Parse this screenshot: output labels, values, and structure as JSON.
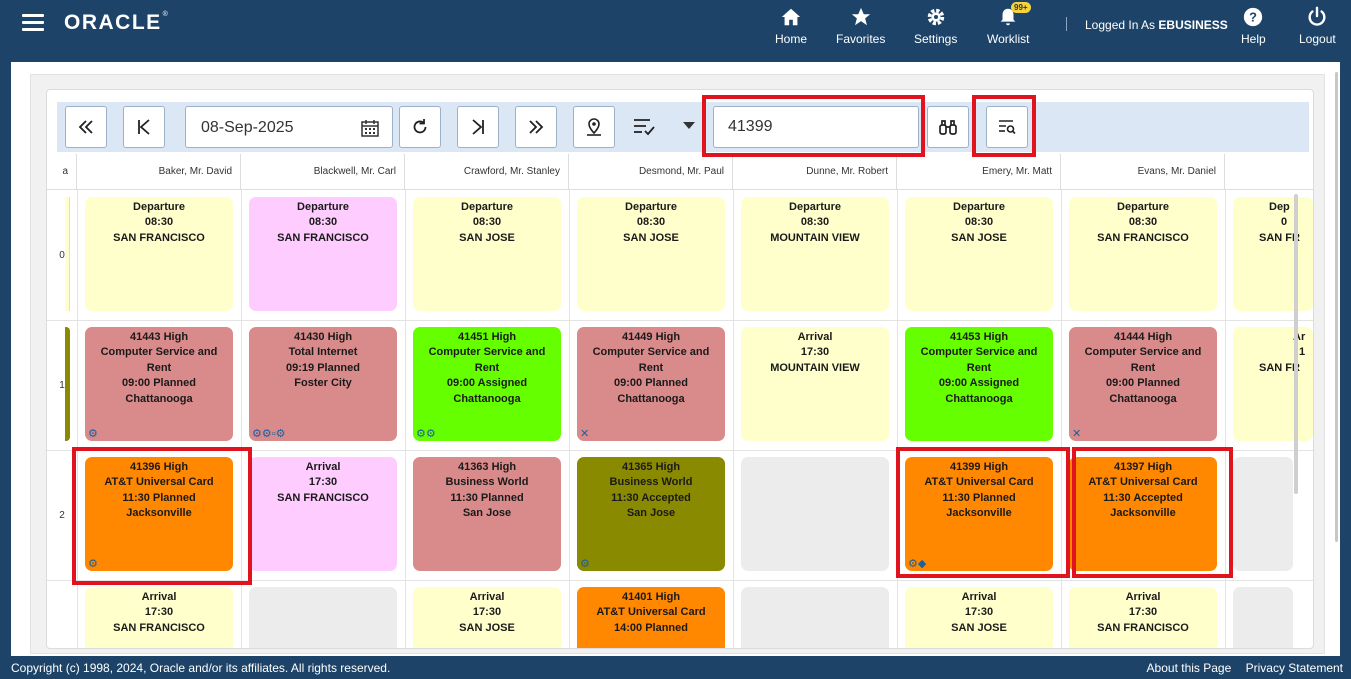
{
  "header": {
    "logo": "ORACLE",
    "nav": [
      {
        "label": "Home",
        "icon": "home-icon"
      },
      {
        "label": "Favorites",
        "icon": "star-icon"
      },
      {
        "label": "Settings",
        "icon": "gear-icon"
      },
      {
        "label": "Worklist",
        "icon": "bell-icon",
        "badge": "99+"
      },
      {
        "label": "Help",
        "icon": "help-icon"
      },
      {
        "label": "Logout",
        "icon": "power-icon"
      }
    ],
    "logged_in_prefix": "Logged In As",
    "logged_in_user": "EBUSINESS"
  },
  "toolbar": {
    "date": "08-Sep-2025",
    "search_value": "41399"
  },
  "columns": [
    "a",
    "Baker, Mr. David",
    "Blackwell, Mr. Carl",
    "Crawford, Mr. Stanley",
    "Desmond, Mr. Paul",
    "Dunne, Mr. Robert",
    "Emery, Mr. Matt",
    "Evans, Mr. Daniel"
  ],
  "rows": [
    "0",
    "1",
    "2"
  ],
  "tiles": {
    "r0": [
      {
        "l1": "Departure",
        "l2": "08:30",
        "l3": "SAN FRANCISCO",
        "color": "yellow"
      },
      {
        "l1": "Departure",
        "l2": "08:30",
        "l3": "SAN FRANCISCO",
        "color": "pink"
      },
      {
        "l1": "Departure",
        "l2": "08:30",
        "l3": "SAN JOSE",
        "color": "yellow"
      },
      {
        "l1": "Departure",
        "l2": "08:30",
        "l3": "SAN JOSE",
        "color": "yellow"
      },
      {
        "l1": "Departure",
        "l2": "08:30",
        "l3": "MOUNTAIN VIEW",
        "color": "yellow"
      },
      {
        "l1": "Departure",
        "l2": "08:30",
        "l3": "SAN JOSE",
        "color": "yellow"
      },
      {
        "l1": "Departure",
        "l2": "08:30",
        "l3": "SAN FRANCISCO",
        "color": "yellow"
      },
      {
        "l1": "Dep",
        "l2": "0",
        "l3": "SAN FR",
        "color": "yellow"
      }
    ],
    "r1": [
      {
        "l1": "41443 High",
        "l2": "Computer Service and",
        "l3": "Rent",
        "l4": "09:00 Planned",
        "l5": "Chattanooga",
        "color": "rose"
      },
      {
        "l1": "41430 High",
        "l2": "Total Internet",
        "l3": "09:19 Planned",
        "l4": "Foster City",
        "color": "rose"
      },
      {
        "l1": "41451 High",
        "l2": "Computer Service and",
        "l3": "Rent",
        "l4": "09:00 Assigned",
        "l5": "Chattanooga",
        "color": "green"
      },
      {
        "l1": "41449 High",
        "l2": "Computer Service and",
        "l3": "Rent",
        "l4": "09:00 Planned",
        "l5": "Chattanooga",
        "color": "rose"
      },
      {
        "l1": "Arrival",
        "l2": "17:30",
        "l3": "MOUNTAIN VIEW",
        "color": "yellow"
      },
      {
        "l1": "41453 High",
        "l2": "Computer Service and",
        "l3": "Rent",
        "l4": "09:00 Assigned",
        "l5": "Chattanooga",
        "color": "green"
      },
      {
        "l1": "41444 High",
        "l2": "Computer Service and",
        "l3": "Rent",
        "l4": "09:00 Planned",
        "l5": "Chattanooga",
        "color": "rose"
      },
      {
        "l1": "Ar",
        "l2": "1",
        "l3": "SAN FR",
        "color": "yellow"
      }
    ],
    "r2": [
      {
        "l1": "41396 High",
        "l2": "AT&T Universal Card",
        "l3": "11:30 Planned",
        "l4": "Jacksonville",
        "color": "orange"
      },
      {
        "l1": "Arrival",
        "l2": "17:30",
        "l3": "SAN FRANCISCO",
        "color": "pink"
      },
      {
        "l1": "41363 High",
        "l2": "Business World",
        "l3": "11:30 Planned",
        "l4": "San Jose",
        "color": "rose"
      },
      {
        "l1": "41365 High",
        "l2": "Business World",
        "l3": "11:30 Accepted",
        "l4": "San Jose",
        "color": "olive"
      },
      {
        "l1": "",
        "color": "grey"
      },
      {
        "l1": "41399 High",
        "l2": "AT&T Universal Card",
        "l3": "11:30 Planned",
        "l4": "Jacksonville",
        "color": "orange"
      },
      {
        "l1": "41397 High",
        "l2": "AT&T Universal Card",
        "l3": "11:30 Accepted",
        "l4": "Jacksonville",
        "color": "orange"
      }
    ],
    "r3": [
      {
        "l1": "Arrival",
        "l2": "17:30",
        "l3": "SAN FRANCISCO",
        "color": "yellow"
      },
      {
        "l1": "",
        "color": "grey"
      },
      {
        "l1": "Arrival",
        "l2": "17:30",
        "l3": "SAN JOSE",
        "color": "yellow"
      },
      {
        "l1": "41401 High",
        "l2": "AT&T Universal Card",
        "l3": "14:00 Planned",
        "color": "orange"
      },
      {
        "l1": "",
        "color": "grey"
      },
      {
        "l1": "Arrival",
        "l2": "17:30",
        "l3": "SAN JOSE",
        "color": "yellow"
      },
      {
        "l1": "Arrival",
        "l2": "17:30",
        "l3": "SAN FRANCISCO",
        "color": "yellow"
      }
    ]
  },
  "footer": {
    "copyright": "Copyright (c) 1998, 2024, Oracle and/or its affiliates. All rights reserved.",
    "about": "About this Page",
    "privacy": "Privacy Statement"
  }
}
